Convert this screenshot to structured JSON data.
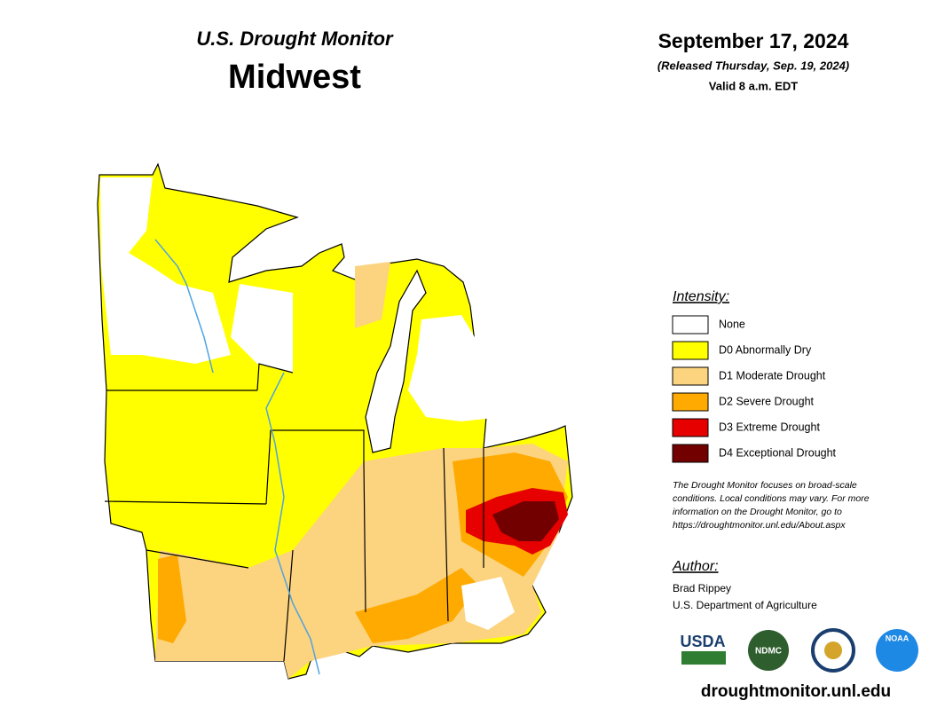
{
  "header": {
    "product": "U.S. Drought Monitor",
    "region": "Midwest",
    "date": "September 17, 2024",
    "released": "(Released Thursday, Sep. 19, 2024)",
    "valid": "Valid 8 a.m. EDT"
  },
  "legend": {
    "title": "Intensity:",
    "items": [
      {
        "label": "None",
        "color": "#ffffff"
      },
      {
        "label": "D0 Abnormally Dry",
        "color": "#ffff00"
      },
      {
        "label": "D1 Moderate Drought",
        "color": "#fcd37f"
      },
      {
        "label": "D2 Severe Drought",
        "color": "#ffaa00"
      },
      {
        "label": "D3 Extreme Drought",
        "color": "#e60000"
      },
      {
        "label": "D4 Exceptional Drought",
        "color": "#730000"
      }
    ]
  },
  "note": [
    "The Drought Monitor focuses on broad-scale",
    "conditions. Local conditions may vary. For more",
    "information on the Drought Monitor, go to",
    "https://droughtmonitor.unl.edu/About.aspx"
  ],
  "author": {
    "title": "Author:",
    "name": "Brad Rippey",
    "org": "U.S. Department of Agriculture"
  },
  "logos": [
    "USDA",
    "NDMC",
    "NOAA"
  ],
  "url": "droughtmonitor.unl.edu"
}
